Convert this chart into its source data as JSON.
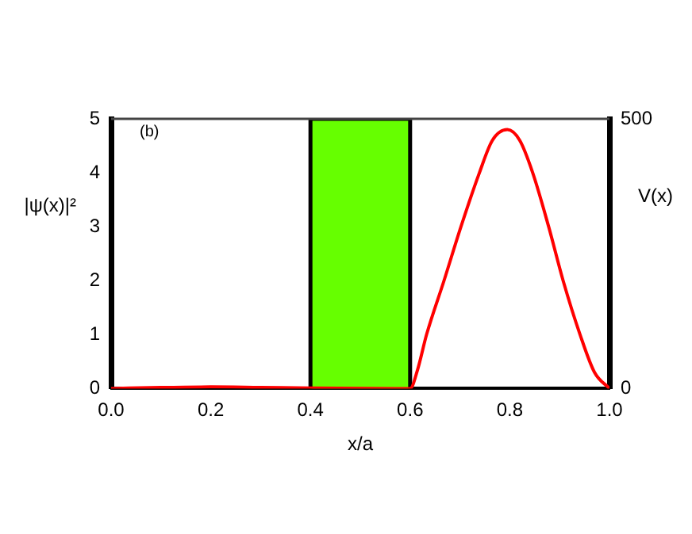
{
  "chart_data": {
    "type": "line",
    "xlabel": "x/a",
    "ylabel": "|ψ(x)|²",
    "y2label": "V(x)",
    "annotations": [
      "(b)"
    ],
    "xlim": [
      0,
      1
    ],
    "xticks": [
      {
        "value": 0,
        "label": "0.0"
      },
      {
        "value": 0.2,
        "label": "0.2"
      },
      {
        "value": 0.4,
        "label": "0.4"
      },
      {
        "value": 0.6,
        "label": "0.6"
      },
      {
        "value": 0.8,
        "label": "0.8"
      },
      {
        "value": 1,
        "label": "1.0"
      }
    ],
    "ylim": [
      0,
      5
    ],
    "yticks": [
      0,
      1,
      2,
      3,
      4,
      5
    ],
    "y2lim": [
      0,
      500
    ],
    "y2ticks": [
      0,
      500
    ],
    "grid": false,
    "legend": false,
    "marker": "none",
    "line_style": "solid",
    "series": [
      {
        "type": "area",
        "axis": "y2",
        "color": "#66ff00",
        "x": [
          0,
          0.4,
          0.4,
          0.6,
          0.6,
          1
        ],
        "values": [
          0,
          0,
          500,
          500,
          0,
          0
        ]
      },
      {
        "color": "#ff0000",
        "x": [
          0,
          0.1,
          0.2,
          0.3,
          0.4,
          0.6,
          0.615,
          0.633,
          0.668,
          0.702,
          0.739,
          0.765,
          0.795,
          0.82,
          0.846,
          0.878,
          0.907,
          0.941,
          0.97,
          1
        ],
        "values": [
          0,
          0.02,
          0.03,
          0.02,
          0.01,
          0,
          0.35,
          1,
          2,
          3,
          4,
          4.6,
          4.8,
          4.6,
          4,
          3,
          2,
          1,
          0.3,
          0
        ]
      }
    ]
  }
}
